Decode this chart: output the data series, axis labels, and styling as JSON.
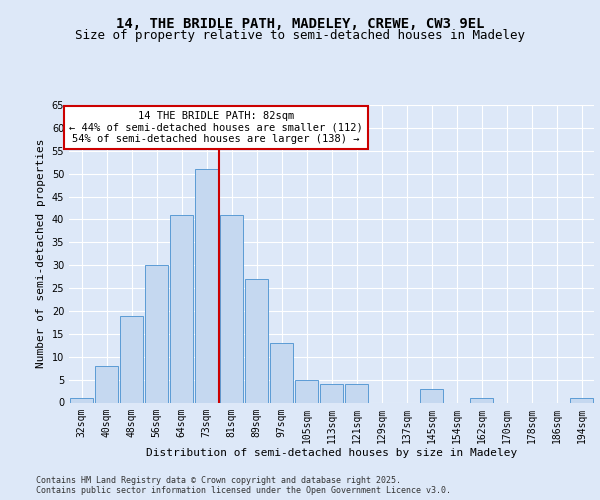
{
  "title_line1": "14, THE BRIDLE PATH, MADELEY, CREWE, CW3 9EL",
  "title_line2": "Size of property relative to semi-detached houses in Madeley",
  "xlabel": "Distribution of semi-detached houses by size in Madeley",
  "ylabel": "Number of semi-detached properties",
  "categories": [
    "32sqm",
    "40sqm",
    "48sqm",
    "56sqm",
    "64sqm",
    "73sqm",
    "81sqm",
    "89sqm",
    "97sqm",
    "105sqm",
    "113sqm",
    "121sqm",
    "129sqm",
    "137sqm",
    "145sqm",
    "154sqm",
    "162sqm",
    "170sqm",
    "178sqm",
    "186sqm",
    "194sqm"
  ],
  "values": [
    1,
    8,
    19,
    30,
    41,
    51,
    41,
    27,
    13,
    5,
    4,
    4,
    0,
    0,
    3,
    0,
    1,
    0,
    0,
    0,
    1
  ],
  "bar_color": "#c5d8f0",
  "bar_edge_color": "#5b9bd5",
  "vline_x": 5.5,
  "vline_color": "#cc0000",
  "annotation_text": "14 THE BRIDLE PATH: 82sqm\n← 44% of semi-detached houses are smaller (112)\n54% of semi-detached houses are larger (138) →",
  "annotation_box_color": "#cc0000",
  "ylim": [
    0,
    65
  ],
  "yticks": [
    0,
    5,
    10,
    15,
    20,
    25,
    30,
    35,
    40,
    45,
    50,
    55,
    60,
    65
  ],
  "footer_text": "Contains HM Land Registry data © Crown copyright and database right 2025.\nContains public sector information licensed under the Open Government Licence v3.0.",
  "background_color": "#dde8f8",
  "plot_background_color": "#dde8f8",
  "title_fontsize": 10,
  "subtitle_fontsize": 9,
  "tick_fontsize": 7,
  "ylabel_fontsize": 8,
  "xlabel_fontsize": 8,
  "annotation_fontsize": 7.5,
  "footer_fontsize": 6
}
